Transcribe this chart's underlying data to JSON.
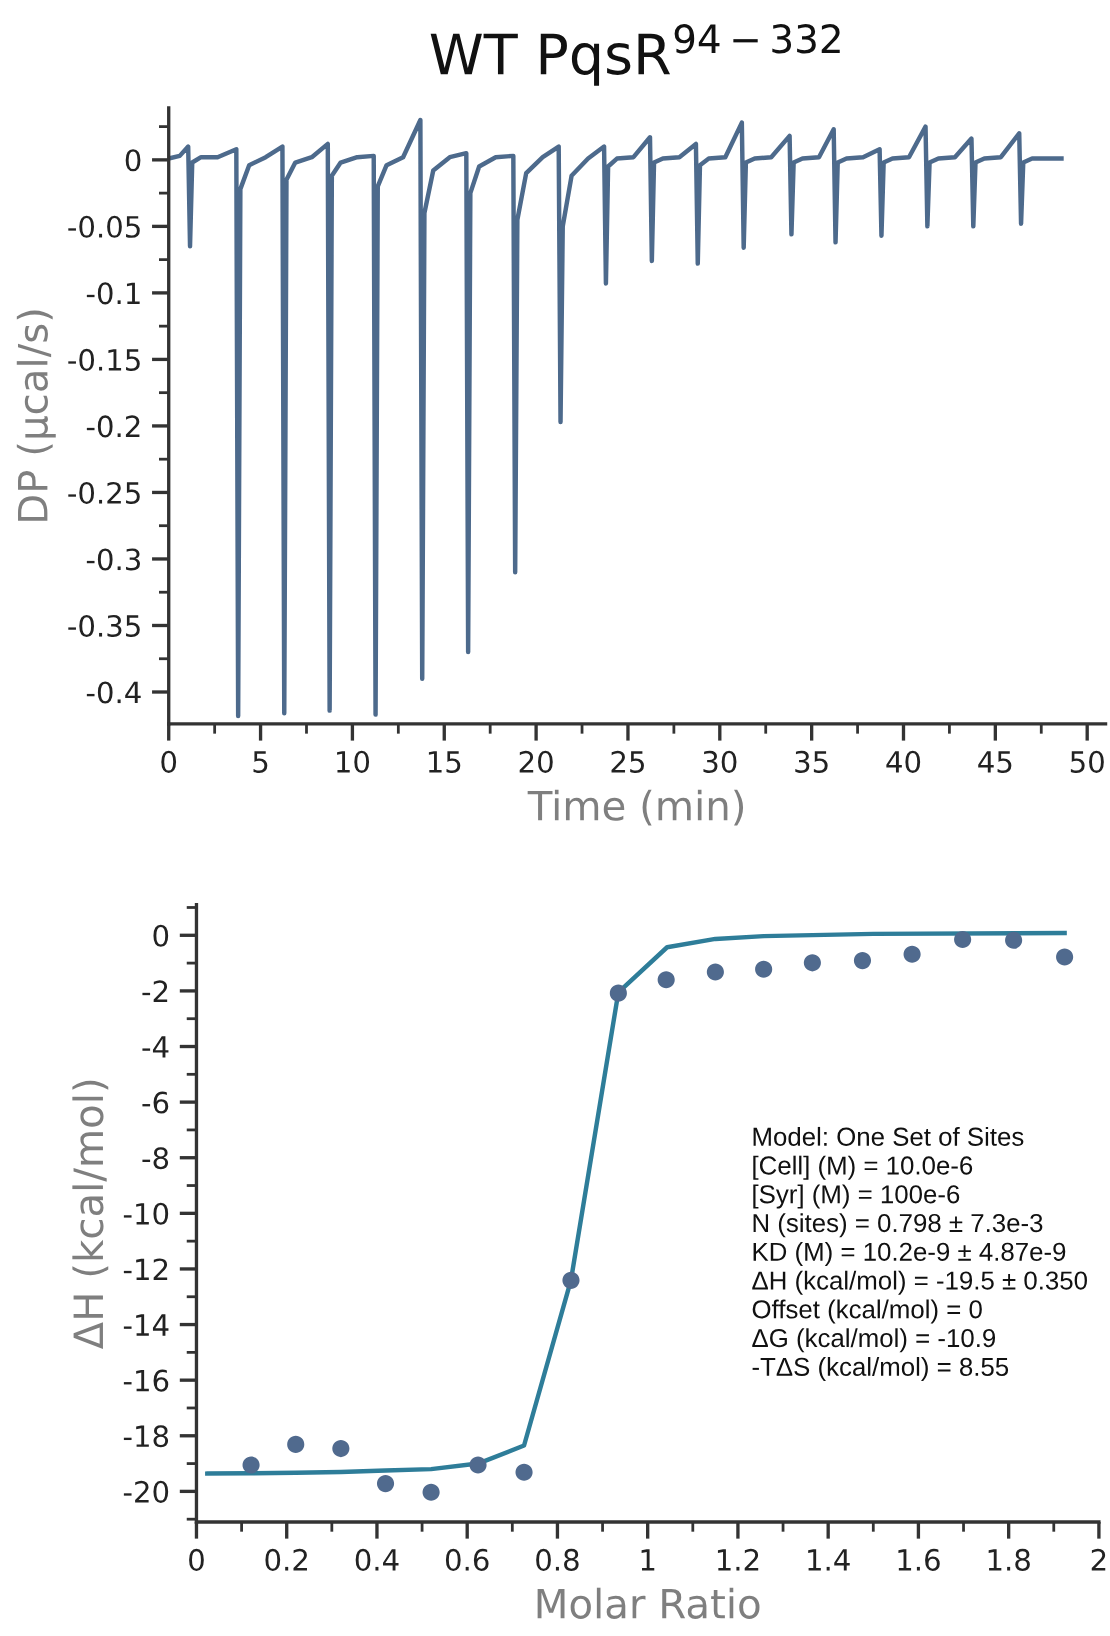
{
  "chart_data": [
    {
      "type": "line",
      "title": "WT PqsR$^{94−332}$",
      "xlabel": "Time (min)",
      "ylabel": "DP (µcal/s)",
      "grid": false,
      "legend": false,
      "marker": "none",
      "xlim": [
        0,
        51
      ],
      "ylim": [
        -0.424,
        0.039
      ],
      "xticks": [
        0,
        5,
        10,
        15,
        20,
        25,
        30,
        35,
        40,
        45,
        50,
        {
          "value": 2.5,
          "label": null
        },
        {
          "value": 7.5,
          "label": null
        },
        {
          "value": 12.5,
          "label": null
        },
        {
          "value": 17.5,
          "label": null
        },
        {
          "value": 22.5,
          "label": null
        },
        {
          "value": 27.5,
          "label": null
        },
        {
          "value": 32.5,
          "label": null
        },
        {
          "value": 37.5,
          "label": null
        },
        {
          "value": 42.5,
          "label": null
        },
        {
          "value": 47.5,
          "label": null
        }
      ],
      "yticks": [
        0,
        {
          "value": -0.05,
          "label": "-0.05"
        },
        {
          "value": -0.1,
          "label": "-0.1"
        },
        {
          "value": -0.15,
          "label": "-0.15"
        },
        {
          "value": -0.2,
          "label": "-0.2"
        },
        {
          "value": -0.25,
          "label": "-0.25"
        },
        {
          "value": -0.3,
          "label": "-0.3"
        },
        {
          "value": -0.35,
          "label": "-0.35"
        },
        {
          "value": -0.4,
          "label": "-0.4"
        },
        {
          "value": 0.025,
          "label": null
        },
        {
          "value": -0.025,
          "label": null
        },
        {
          "value": -0.075,
          "label": null
        },
        {
          "value": -0.125,
          "label": null
        },
        {
          "value": -0.175,
          "label": null
        },
        {
          "value": -0.225,
          "label": null
        },
        {
          "value": -0.275,
          "label": null
        },
        {
          "value": -0.325,
          "label": null
        },
        {
          "value": -0.375,
          "label": null
        }
      ],
      "series": [
        {
          "color": "#4d6a8c",
          "x": [
            0,
            0.6,
            1.06,
            1.16,
            1.28,
            1.76,
            2.66,
            3.68,
            3.78,
            3.9,
            4.38,
            5.28,
            6.19,
            6.29,
            6.41,
            6.89,
            7.79,
            8.66,
            8.76,
            8.88,
            9.36,
            10.26,
            11.16,
            11.26,
            11.38,
            11.86,
            12.76,
            13.7,
            13.8,
            13.92,
            14.4,
            15.3,
            16.2,
            16.3,
            16.42,
            16.9,
            17.8,
            18.76,
            18.86,
            18.98,
            19.46,
            20.36,
            21.23,
            21.33,
            21.45,
            21.93,
            22.83,
            23.7,
            23.8,
            23.92,
            24.4,
            25.3,
            26.2,
            26.3,
            26.42,
            26.9,
            27.8,
            28.7,
            28.8,
            28.92,
            29.4,
            30.3,
            31.2,
            31.3,
            31.42,
            31.9,
            32.8,
            33.8,
            33.9,
            34.02,
            34.5,
            35.4,
            36.2,
            36.3,
            36.42,
            36.9,
            37.8,
            38.7,
            38.8,
            38.92,
            39.4,
            40.3,
            41.2,
            41.3,
            41.42,
            41.9,
            42.8,
            43.7,
            43.8,
            43.92,
            44.4,
            45.3,
            46.3,
            46.4,
            46.52,
            47,
            48.6
          ],
          "values": [
            0.001,
            0.003,
            0.01,
            -0.065,
            -0.002,
            0.002,
            0.002,
            0.008,
            -0.418,
            -0.022,
            -0.004,
            0.002,
            0.01,
            -0.416,
            -0.015,
            -0.002,
            0.002,
            0.012,
            -0.414,
            -0.012,
            -0.002,
            0.002,
            0.003,
            -0.417,
            -0.02,
            -0.004,
            0.002,
            0.03,
            -0.39,
            -0.04,
            -0.008,
            0.002,
            0.005,
            -0.37,
            -0.025,
            -0.005,
            0.002,
            0.003,
            -0.31,
            -0.045,
            -0.01,
            0.002,
            0.01,
            -0.197,
            -0.05,
            -0.012,
            0.001,
            0.01,
            -0.093,
            -0.005,
            0.001,
            0.002,
            0.017,
            -0.076,
            -0.002,
            0.001,
            0.002,
            0.012,
            -0.078,
            -0.004,
            0.001,
            0.002,
            0.028,
            -0.066,
            -0.002,
            0.001,
            0.002,
            0.018,
            -0.056,
            -0.002,
            0.001,
            0.002,
            0.023,
            -0.062,
            -0.002,
            0.001,
            0.002,
            0.008,
            -0.057,
            -0.002,
            0.001,
            0.002,
            0.025,
            -0.05,
            -0.002,
            0.001,
            0.002,
            0.016,
            -0.05,
            -0.002,
            0.001,
            0.002,
            0.02,
            -0.048,
            -0.002,
            0.001,
            0.001
          ]
        }
      ]
    },
    {
      "type": "scatter",
      "xlabel": "Molar Ratio",
      "ylabel": "ΔH (kcal/mol)",
      "grid": false,
      "legend": false,
      "xlim": [
        0,
        2.0
      ],
      "ylim": [
        -21.1,
        1.1
      ],
      "xticks": [
        0,
        0.2,
        0.4,
        0.6,
        0.8,
        1,
        1.2,
        1.4,
        1.6,
        1.8,
        2,
        {
          "value": 0.1,
          "label": null
        },
        {
          "value": 0.3,
          "label": null
        },
        {
          "value": 0.5,
          "label": null
        },
        {
          "value": 0.7,
          "label": null
        },
        {
          "value": 0.9,
          "label": null
        },
        {
          "value": 1.1,
          "label": null
        },
        {
          "value": 1.3,
          "label": null
        },
        {
          "value": 1.5,
          "label": null
        },
        {
          "value": 1.7,
          "label": null
        },
        {
          "value": 1.9,
          "label": null
        }
      ],
      "yticks": [
        0,
        {
          "value": -2,
          "label": "-2"
        },
        {
          "value": -4,
          "label": "-4"
        },
        {
          "value": -6,
          "label": "-6"
        },
        {
          "value": -8,
          "label": "-8"
        },
        {
          "value": -10,
          "label": "-10"
        },
        {
          "value": -12,
          "label": "-12"
        },
        {
          "value": -14,
          "label": "-14"
        },
        {
          "value": -16,
          "label": "-16"
        },
        {
          "value": -18,
          "label": "-18"
        },
        {
          "value": -20,
          "label": "-20"
        },
        {
          "value": 1,
          "label": null
        },
        {
          "value": -1,
          "label": null
        },
        {
          "value": -3,
          "label": null
        },
        {
          "value": -5,
          "label": null
        },
        {
          "value": -7,
          "label": null
        },
        {
          "value": -9,
          "label": null
        },
        {
          "value": -11,
          "label": null
        },
        {
          "value": -13,
          "label": null
        },
        {
          "value": -15,
          "label": null
        },
        {
          "value": -17,
          "label": null
        },
        {
          "value": -19,
          "label": null
        },
        {
          "value": -21,
          "label": null
        }
      ],
      "annotations": [
        "Model: One Set of Sites",
        "[Cell] (M) = 10.0e-6",
        "[Syr] (M) = 100e-6",
        "N (sites) = 0.798 ± 7.3e-3",
        "KD (M) = 10.2e-9 ± 4.87e-9",
        "ΔH (kcal/mol) = -19.5 ± 0.350",
        "Offset (kcal/mol) = 0",
        "ΔG (kcal/mol) = -10.9",
        "-TΔS (kcal/mol) = 8.55"
      ],
      "series": [
        {
          "type": "line",
          "color": "#2e7d99",
          "marker": "none",
          "x": [
            0.024,
            0.121,
            0.22,
            0.32,
            0.419,
            0.52,
            0.624,
            0.726,
            0.83,
            0.935,
            1.043,
            1.15,
            1.257,
            1.5,
            1.924
          ],
          "values": [
            -19.36,
            -19.35,
            -19.33,
            -19.3,
            -19.25,
            -19.2,
            -19.0,
            -18.35,
            -12.4,
            -2.05,
            -0.43,
            -0.13,
            -0.03,
            0.05,
            0.08
          ]
        },
        {
          "color": "#506a8e",
          "marker": "circle",
          "x": [
            0.121,
            0.22,
            0.32,
            0.419,
            0.52,
            0.624,
            0.726,
            0.83,
            0.935,
            1.041,
            1.15,
            1.257,
            1.365,
            1.476,
            1.586,
            1.698,
            1.811,
            1.924
          ],
          "values": [
            -19.05,
            -18.31,
            -18.46,
            -19.72,
            -20.03,
            -19.05,
            -19.31,
            -12.41,
            -2.08,
            -1.6,
            -1.32,
            -1.22,
            -0.99,
            -0.91,
            -0.68,
            -0.15,
            -0.18,
            -0.78
          ]
        }
      ]
    }
  ]
}
